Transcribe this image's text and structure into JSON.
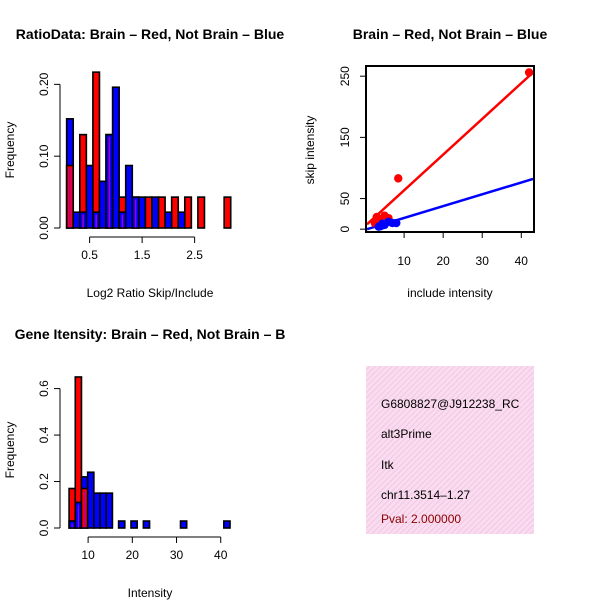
{
  "chart_data": [
    {
      "type": "bar",
      "title": "RatioData: Brain – Red, Not Brain – Blue",
      "xlabel": "Log2 Ratio Skip/Include",
      "ylabel": "Frequency",
      "xlim": [
        0.05,
        3.25
      ],
      "ylim": [
        0,
        0.22
      ],
      "xticks": [
        "0.5",
        "1.5",
        "2.5"
      ],
      "yticks": [
        "0.00",
        "0.10",
        "0.20"
      ],
      "bin_width": 0.125,
      "series": [
        {
          "name": "Brain",
          "color": "#ff0000",
          "bins": [
            [
              0.125,
              0.087
            ],
            [
              0.375,
              0.13
            ],
            [
              0.625,
              0.217
            ],
            [
              0.875,
              0.13
            ],
            [
              1.125,
              0.043
            ],
            [
              1.375,
              0.043
            ],
            [
              1.625,
              0.043
            ],
            [
              1.875,
              0.043
            ],
            [
              2.125,
              0.043
            ],
            [
              2.375,
              0.043
            ],
            [
              2.625,
              0.043
            ],
            [
              3.125,
              0.043
            ]
          ]
        },
        {
          "name": "Not Brain",
          "color": "#0000ff",
          "bins": [
            [
              0.125,
              0.152
            ],
            [
              0.25,
              0.022
            ],
            [
              0.375,
              0.022
            ],
            [
              0.5,
              0.087
            ],
            [
              0.625,
              0.022
            ],
            [
              0.75,
              0.065
            ],
            [
              0.875,
              0.13
            ],
            [
              1.0,
              0.196
            ],
            [
              1.125,
              0.022
            ],
            [
              1.25,
              0.087
            ],
            [
              1.375,
              0.043
            ],
            [
              1.5,
              0.043
            ],
            [
              1.75,
              0.043
            ],
            [
              2.0,
              0.022
            ],
            [
              2.25,
              0.022
            ]
          ]
        }
      ],
      "overlap_color": "#9900cc"
    },
    {
      "type": "scatter",
      "title": "Brain – Red, Not Brain – Blue",
      "xlabel": "include intensity",
      "ylabel": "skip intensity",
      "xlim": [
        0.5,
        43
      ],
      "ylim": [
        -3,
        265
      ],
      "xticks": [
        "10",
        "20",
        "30",
        "40"
      ],
      "yticks": [
        "0",
        "50",
        "150",
        "250"
      ],
      "series": [
        {
          "name": "Brain",
          "color": "#ff0000",
          "points": [
            [
              42,
              256
            ],
            [
              8.5,
              83
            ],
            [
              3,
              20
            ],
            [
              5,
              22
            ],
            [
              3.5,
              15
            ],
            [
              2.5,
              10
            ],
            [
              6,
              18
            ]
          ],
          "fit": [
            [
              0.5,
              8
            ],
            [
              43,
              256
            ]
          ]
        },
        {
          "name": "Not Brain",
          "color": "#0000ff",
          "points": [
            [
              4,
              5
            ],
            [
              5,
              7
            ],
            [
              6,
              12
            ],
            [
              7,
              10
            ],
            [
              8,
              10
            ],
            [
              3.5,
              4
            ],
            [
              4.5,
              9
            ]
          ],
          "fit": [
            [
              0.5,
              0
            ],
            [
              43,
              82
            ]
          ]
        }
      ]
    },
    {
      "type": "bar",
      "title": "Gene Itensity: Brain – Red, Not Brain – B",
      "xlabel": "Intensity",
      "ylabel": "Frequency",
      "xlim": [
        5,
        43
      ],
      "ylim": [
        0,
        0.68
      ],
      "xticks": [
        "10",
        "20",
        "30",
        "40"
      ],
      "yticks": [
        "0.0",
        "0.2",
        "0.4",
        "0.6"
      ],
      "bin_width": 1.4,
      "series": [
        {
          "name": "Brain",
          "color": "#ff0000",
          "bins": [
            [
              6.4,
              0.17
            ],
            [
              7.8,
              0.65
            ],
            [
              9.2,
              0.17
            ]
          ]
        },
        {
          "name": "Not Brain",
          "color": "#0000ff",
          "bins": [
            [
              6.4,
              0.03
            ],
            [
              7.8,
              0.11
            ],
            [
              9.2,
              0.22
            ],
            [
              10.6,
              0.24
            ],
            [
              12.0,
              0.15
            ],
            [
              13.4,
              0.15
            ],
            [
              14.8,
              0.15
            ],
            [
              17.6,
              0.03
            ],
            [
              20.4,
              0.03
            ],
            [
              23.2,
              0.03
            ],
            [
              31.6,
              0.03
            ],
            [
              41.4,
              0.03
            ]
          ]
        }
      ],
      "overlap_color": "#9900cc"
    }
  ],
  "info_panel": {
    "id": "G6808827@J912238_RC",
    "event_type": "alt3Prime",
    "gene": "Itk",
    "location": "chr11.3514–1.27",
    "pval": "Pval: 2.000000"
  }
}
